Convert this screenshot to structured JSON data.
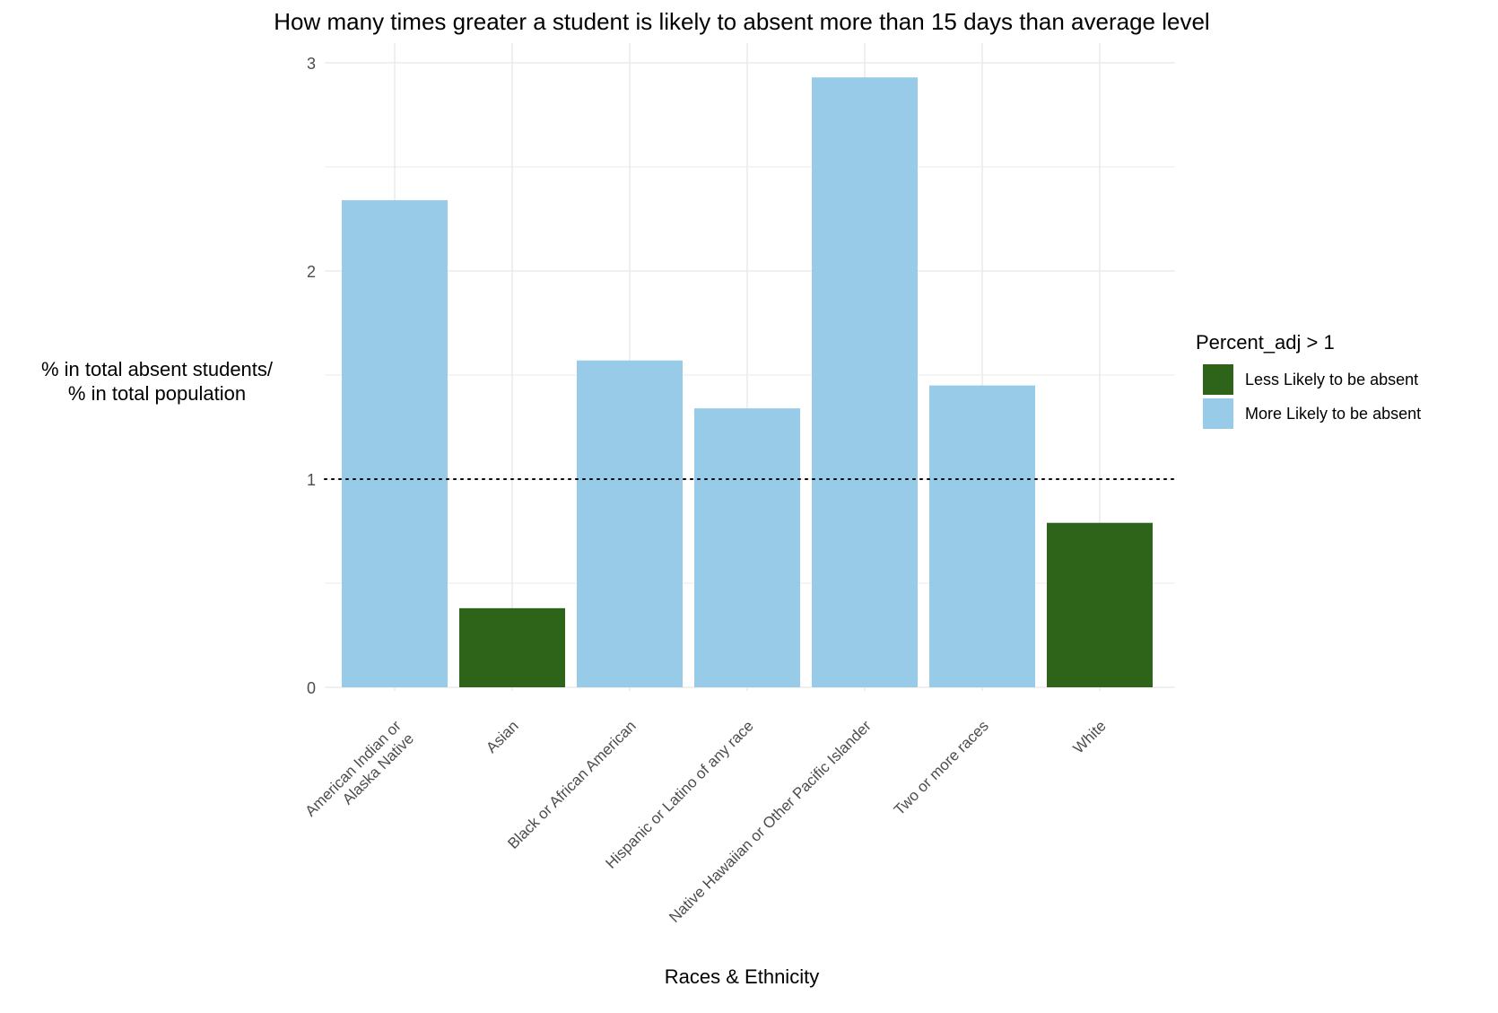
{
  "chart_data": {
    "type": "bar",
    "title": "How many times greater a student is likely to absent more than 15 days than average level",
    "xlabel": "Races & Ethnicity",
    "ylabel_lines": [
      "% in total absent students/",
      "% in total population"
    ],
    "categories": [
      [
        "American Indian or",
        "Alaska Native"
      ],
      [
        "Asian"
      ],
      [
        "Black or African American"
      ],
      [
        "Hispanic or Latino of any race"
      ],
      [
        "Native Hawaiian or Other Pacific Islander"
      ],
      [
        "Two or more races"
      ],
      [
        "White"
      ]
    ],
    "values": [
      2.34,
      0.38,
      1.57,
      1.34,
      2.93,
      1.45,
      0.79
    ],
    "groups": [
      "More Likely to be absent",
      "Less Likely to be absent",
      "More Likely to be absent",
      "More Likely to be absent",
      "More Likely to be absent",
      "More Likely to be absent",
      "Less Likely to be absent"
    ],
    "ylim": [
      0,
      3
    ],
    "yticks": [
      0,
      1,
      2,
      3
    ],
    "reference_line": 1,
    "grid": true,
    "legend": {
      "title": "Percent_adj > 1",
      "placement": "right",
      "entries": [
        {
          "label": "Less Likely to be absent",
          "color": "#2d6419"
        },
        {
          "label": "More Likely to be absent",
          "color": "#98cbe7"
        }
      ]
    }
  }
}
